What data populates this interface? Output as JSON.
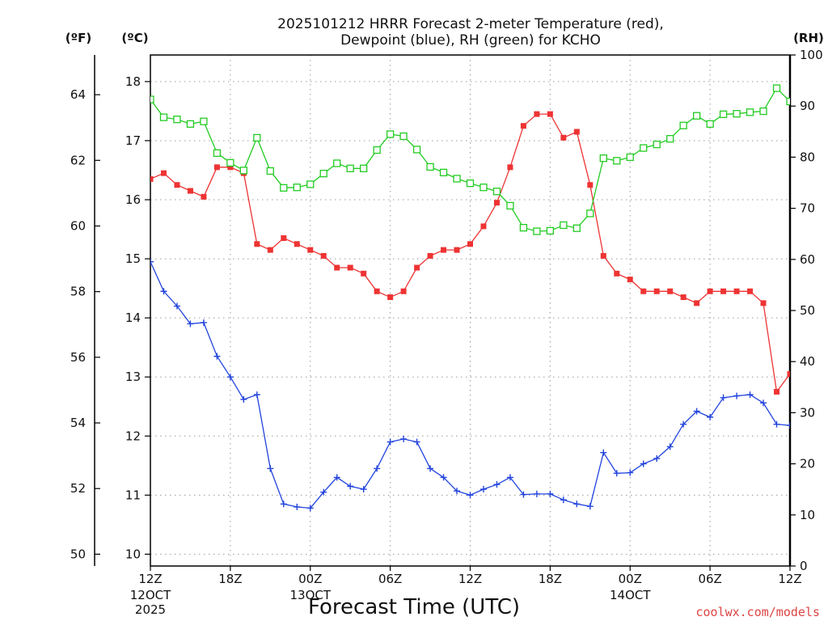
{
  "chart_data": {
    "type": "line",
    "title_line1": "2025101212 HRRR Forecast 2-meter Temperature (red),",
    "title_line2": "Dewpoint (blue), RH (green) for KCHO",
    "xlabel": "Forecast Time (UTC)",
    "credit": "coolwx.com/models",
    "axis_headers": {
      "fahrenheit": "(ºF)",
      "celsius": "(ºC)",
      "rh": "(RH)"
    },
    "forecast_hours_range": [
      0,
      48
    ],
    "celsius_range": [
      9.8,
      18.45
    ],
    "celsius_ticks": [
      "10",
      "11",
      "12",
      "13",
      "14",
      "15",
      "16",
      "17",
      "18"
    ],
    "fahrenheit_ticks": [
      "50",
      "52",
      "54",
      "56",
      "58",
      "60",
      "62",
      "64"
    ],
    "rh_range": [
      0,
      100
    ],
    "rh_ticks": [
      "0",
      "10",
      "20",
      "30",
      "40",
      "50",
      "60",
      "70",
      "80",
      "90",
      "100"
    ],
    "x_ticks": [
      {
        "hour": 0,
        "label": "12Z",
        "sub1": "12OCT",
        "sub2": "2025"
      },
      {
        "hour": 6,
        "label": "18Z",
        "sub1": "",
        "sub2": ""
      },
      {
        "hour": 12,
        "label": "00Z",
        "sub1": "13OCT",
        "sub2": ""
      },
      {
        "hour": 18,
        "label": "06Z",
        "sub1": "",
        "sub2": ""
      },
      {
        "hour": 24,
        "label": "12Z",
        "sub1": "",
        "sub2": ""
      },
      {
        "hour": 30,
        "label": "18Z",
        "sub1": "",
        "sub2": ""
      },
      {
        "hour": 36,
        "label": "00Z",
        "sub1": "14OCT",
        "sub2": ""
      },
      {
        "hour": 42,
        "label": "06Z",
        "sub1": "",
        "sub2": ""
      },
      {
        "hour": 48,
        "label": "12Z",
        "sub1": "",
        "sub2": ""
      }
    ],
    "grid": true,
    "series": [
      {
        "name": "Temperature",
        "axis": "celsius",
        "color": "#ee3333",
        "marker": "filled-square",
        "values": [
          16.35,
          16.45,
          16.25,
          16.15,
          16.05,
          16.55,
          16.55,
          16.45,
          15.25,
          15.15,
          15.35,
          15.25,
          15.15,
          15.05,
          14.85,
          14.85,
          14.75,
          14.45,
          14.35,
          14.45,
          14.85,
          15.05,
          15.15,
          15.15,
          15.25,
          15.55,
          15.95,
          16.55,
          17.25,
          17.45,
          17.45,
          17.05,
          17.15,
          16.25,
          15.05,
          14.75,
          14.65,
          14.45,
          14.45,
          14.45,
          14.35,
          14.25,
          14.45,
          14.45,
          14.45,
          14.45,
          14.25,
          12.75,
          13.05
        ]
      },
      {
        "name": "Dewpoint",
        "axis": "celsius",
        "color": "#2244dd",
        "marker": "plus",
        "values": [
          14.95,
          14.45,
          14.2,
          13.9,
          13.92,
          13.35,
          13.0,
          12.62,
          12.7,
          11.45,
          10.85,
          10.8,
          10.78,
          11.05,
          11.3,
          11.15,
          11.1,
          11.45,
          11.9,
          11.95,
          11.9,
          11.45,
          11.3,
          11.07,
          11.0,
          11.1,
          11.18,
          11.3,
          11.01,
          11.02,
          11.02,
          10.92,
          10.85,
          10.81,
          11.72,
          11.37,
          11.38,
          11.53,
          11.62,
          11.82,
          12.2,
          12.42,
          12.32,
          12.65,
          12.68,
          12.7,
          12.56,
          12.2,
          12.18
        ]
      },
      {
        "name": "RH",
        "axis": "rh",
        "color": "#22cc22",
        "marker": "open-square",
        "values": [
          91.3,
          87.8,
          87.4,
          86.5,
          87.0,
          80.8,
          78.9,
          77.4,
          83.8,
          77.3,
          74.0,
          74.1,
          74.7,
          76.8,
          78.8,
          77.8,
          77.8,
          81.4,
          84.5,
          84.1,
          81.5,
          78.1,
          77.0,
          75.8,
          74.9,
          74.1,
          73.3,
          70.5,
          66.2,
          65.5,
          65.6,
          66.7,
          66.1,
          69.0,
          79.8,
          79.3,
          80.0,
          81.8,
          82.5,
          83.6,
          86.2,
          88.1,
          86.5,
          88.4,
          88.5,
          88.8,
          89.0,
          93.5,
          90.9
        ]
      }
    ]
  }
}
